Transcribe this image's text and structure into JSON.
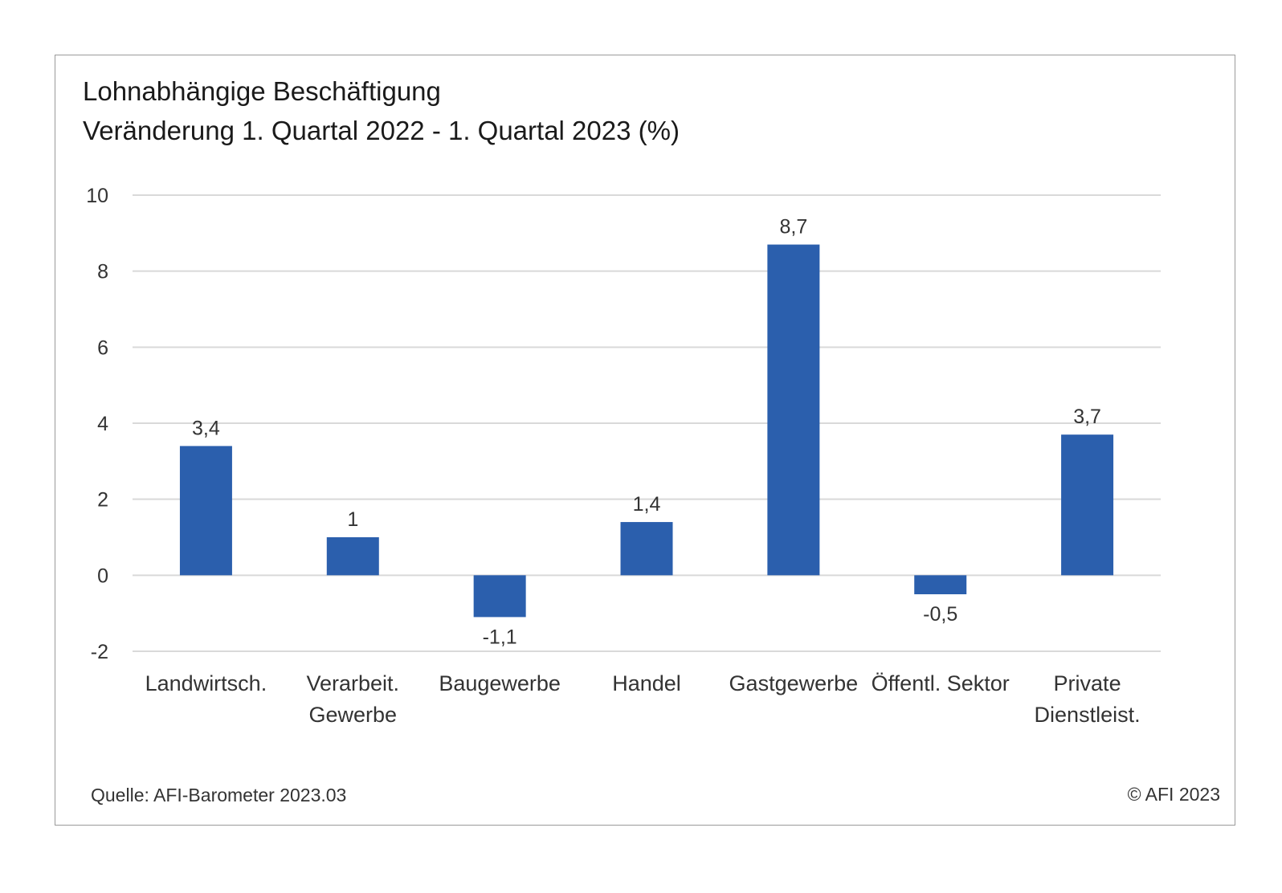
{
  "title": "Lohnabhängige Beschäftigung",
  "subtitle": "Veränderung 1. Quartal 2022 - 1. Quartal 2023 (%)",
  "footer": {
    "source": "Quelle: AFI-Barometer 2023.03",
    "copyright": "© AFI 2023"
  },
  "chart_data": {
    "type": "bar",
    "title": "Lohnabhängige Beschäftigung",
    "subtitle": "Veränderung 1. Quartal 2022 - 1. Quartal 2023 (%)",
    "categories": [
      [
        "Landwirtsch."
      ],
      [
        "Verarbeit.",
        "Gewerbe"
      ],
      [
        "Baugewerbe"
      ],
      [
        "Handel"
      ],
      [
        "Gastgewerbe"
      ],
      [
        "Öffentl. Sektor"
      ],
      [
        "Private",
        "Dienstleist."
      ]
    ],
    "values": [
      3.4,
      1,
      -1.1,
      1.4,
      8.7,
      -0.5,
      3.7
    ],
    "value_labels": [
      "3,4",
      "1",
      "-1,1",
      "1,4",
      "8,7",
      "-0,5",
      "3,7"
    ],
    "ylim": [
      -2,
      10
    ],
    "yticks": [
      -2,
      0,
      2,
      4,
      6,
      8,
      10
    ],
    "grid": true,
    "bar_color": "#2b5fad",
    "grid_color": "#d9d9d9"
  }
}
